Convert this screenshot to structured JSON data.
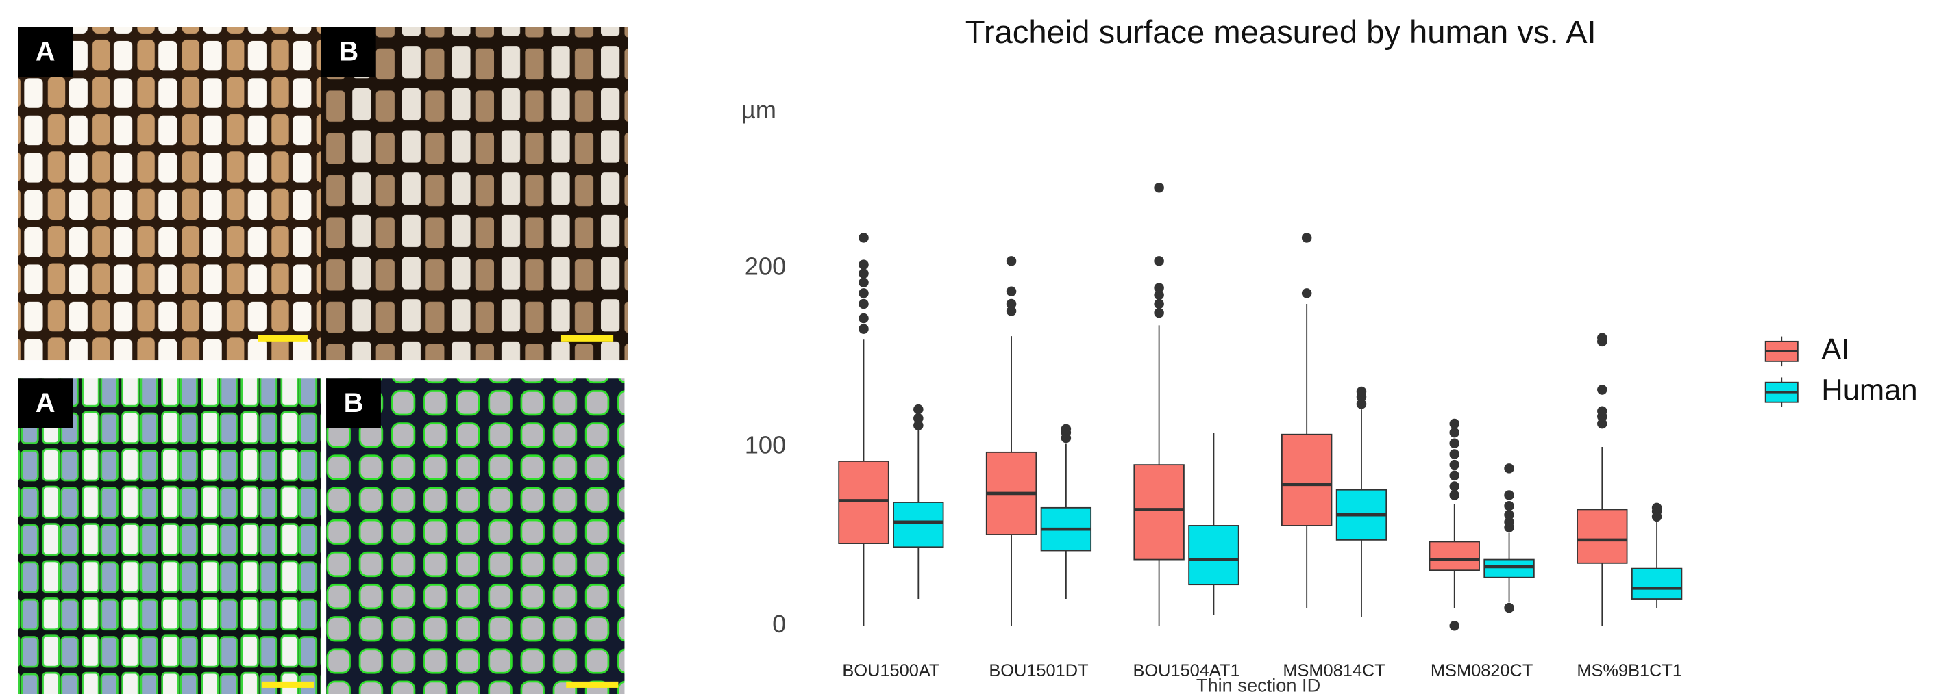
{
  "figure_panels": [
    {
      "label": "A"
    },
    {
      "label": "B"
    },
    {
      "label": "A"
    },
    {
      "label": "B"
    }
  ],
  "chart_data": {
    "type": "box",
    "title": "Tracheid surface measured by human vs. AI",
    "y_label": "µm",
    "x_label": "Thin section ID",
    "categories": [
      "BOU1500AT",
      "BOU1501DT",
      "BOU1504AT1",
      "MSM0814CT",
      "MSM0820CT",
      "MS%9B1CT1"
    ],
    "ylim": [
      -5,
      250
    ],
    "yticks": [
      0,
      100,
      200
    ],
    "grid": false,
    "legend": "right",
    "series": [
      {
        "name": "AI",
        "color": "#f8766d",
        "values": [
          {
            "low": 0,
            "q1": 46,
            "median": 70,
            "q3": 92,
            "high": 160,
            "outliers": [
              166,
              172,
              180,
              186,
              192,
              197,
              202,
              217
            ]
          },
          {
            "low": 0,
            "q1": 51,
            "median": 74,
            "q3": 97,
            "high": 162,
            "outliers": [
              176,
              180,
              187,
              204
            ]
          },
          {
            "low": 0,
            "q1": 37,
            "median": 65,
            "q3": 90,
            "high": 168,
            "outliers": [
              175,
              180,
              185,
              189,
              204,
              245
            ]
          },
          {
            "low": 10,
            "q1": 56,
            "median": 79,
            "q3": 107,
            "high": 180,
            "outliers": [
              186,
              217
            ]
          },
          {
            "low": 10,
            "q1": 31,
            "median": 37,
            "q3": 47,
            "high": 68,
            "outliers": [
              0,
              73,
              78,
              84,
              90,
              96,
              102,
              108,
              113
            ]
          },
          {
            "low": 0,
            "q1": 35,
            "median": 48,
            "q3": 65,
            "high": 100,
            "outliers": [
              113,
              117,
              120,
              132,
              159,
              161
            ]
          }
        ]
      },
      {
        "name": "Human",
        "color": "#00e2ea",
        "values": [
          {
            "low": 15,
            "q1": 44,
            "median": 58,
            "q3": 69,
            "high": 110,
            "outliers": [
              112,
              116,
              121
            ]
          },
          {
            "low": 15,
            "q1": 42,
            "median": 54,
            "q3": 66,
            "high": 102,
            "outliers": [
              105,
              108,
              110
            ]
          },
          {
            "low": 6,
            "q1": 23,
            "median": 37,
            "q3": 56,
            "high": 108,
            "outliers": []
          },
          {
            "low": 5,
            "q1": 48,
            "median": 62,
            "q3": 76,
            "high": 121,
            "outliers": [
              124,
              128,
              131
            ]
          },
          {
            "low": 13,
            "q1": 27,
            "median": 33,
            "q3": 37,
            "high": 52,
            "outliers": [
              10,
              55,
              58,
              62,
              67,
              73,
              88
            ]
          },
          {
            "low": 10,
            "q1": 15,
            "median": 21,
            "q3": 32,
            "high": 58,
            "outliers": [
              61,
              64,
              66
            ]
          }
        ]
      }
    ]
  }
}
